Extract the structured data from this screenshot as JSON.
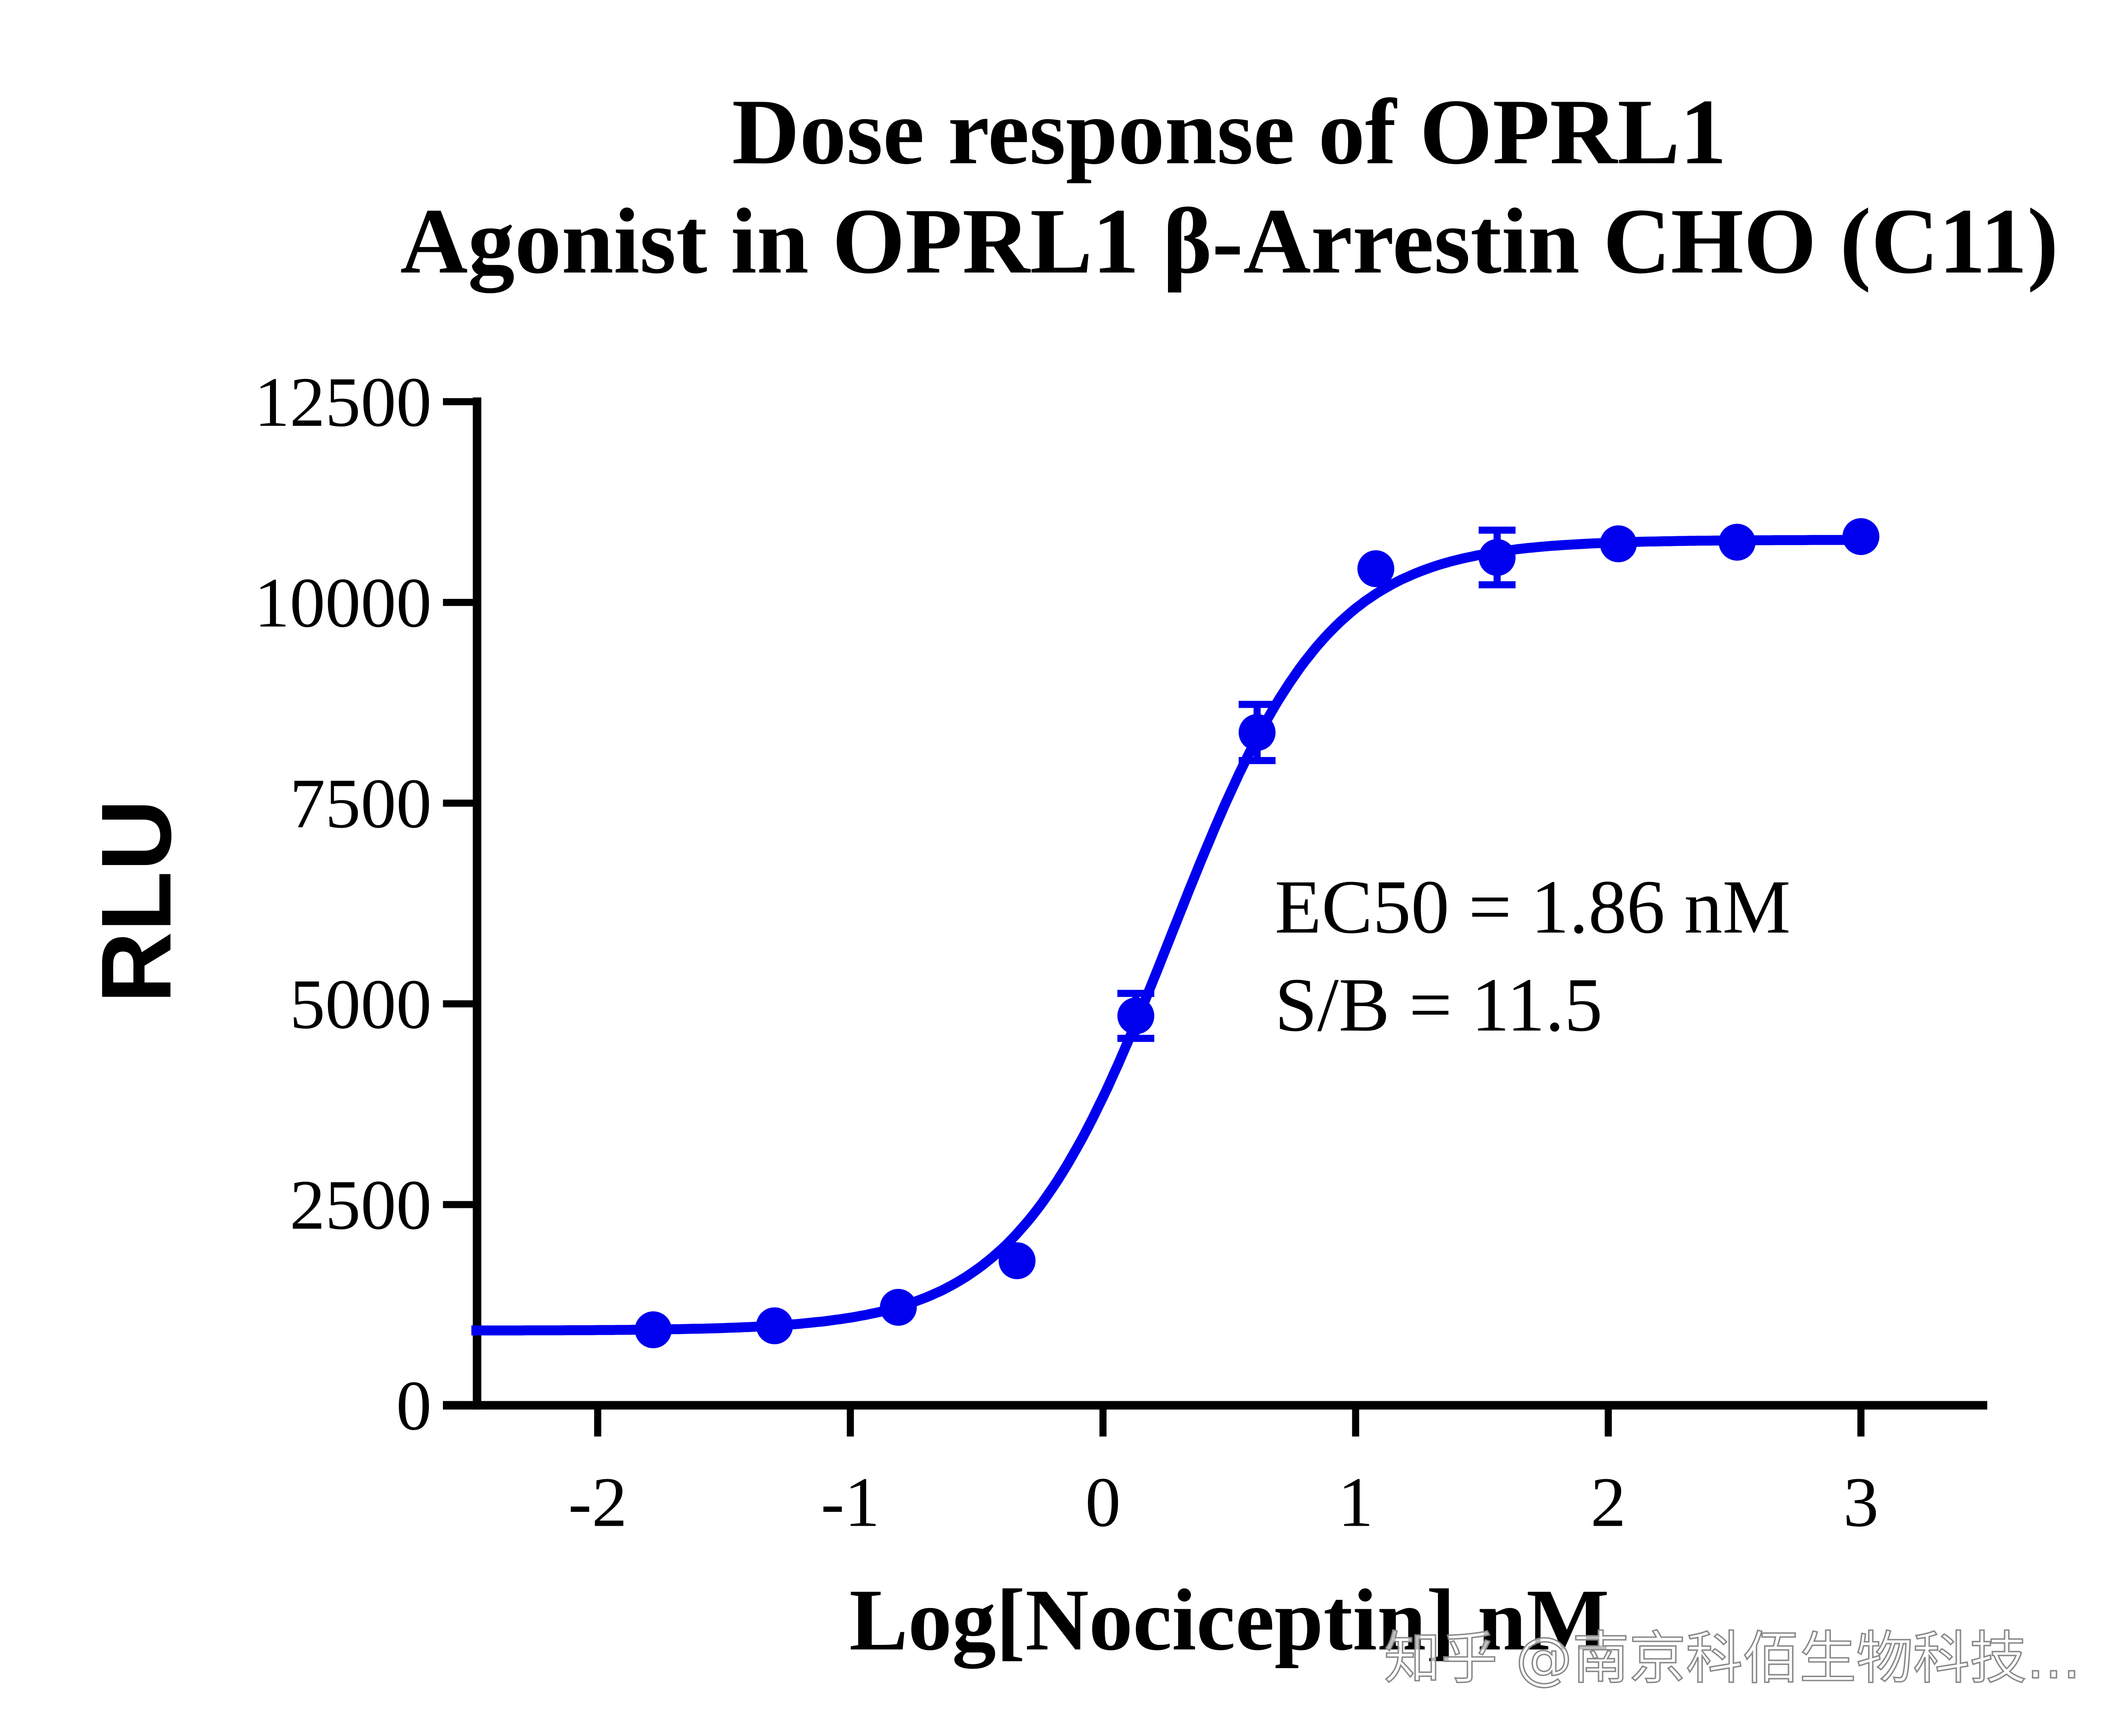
{
  "chart_data": {
    "type": "scatter",
    "title": [
      "Dose response of OPRL1",
      "Agonist in OPRL1 β-Arrestin CHO (C11)"
    ],
    "xlabel": "Log[Nociceptin] nM",
    "ylabel": "RLU",
    "xlim": [
      -2.5,
      3.5
    ],
    "ylim": [
      0,
      12500
    ],
    "x_ticks": [
      "-2",
      "-1",
      "0",
      "1",
      "2",
      "3"
    ],
    "y_ticks": [
      "0",
      "2500",
      "5000",
      "7500",
      "10000",
      "12500"
    ],
    "grid": false,
    "color": "#0000ee",
    "series": [
      {
        "x": [
          -1.78,
          -1.3,
          -0.81,
          -0.34,
          0.13,
          0.61,
          1.08,
          1.56,
          2.04,
          2.51,
          3.0
        ],
        "y": [
          940,
          990,
          1220,
          1800,
          4850,
          8380,
          10420,
          10560,
          10730,
          10750,
          10820
        ],
        "error": [
          40,
          40,
          60,
          60,
          280,
          350,
          80,
          340,
          60,
          40,
          40
        ]
      }
    ],
    "fit": {
      "model": "four-parameter logistic",
      "bottom": 930,
      "top": 10780,
      "logEC50": 0.27,
      "hill": 1.4,
      "x_range": [
        -2.5,
        3.0
      ]
    },
    "annotations": [
      "EC50 = 1.86 nM",
      "S/B = 11.5"
    ]
  },
  "watermark": "知乎 @南京科佰生物科技..."
}
